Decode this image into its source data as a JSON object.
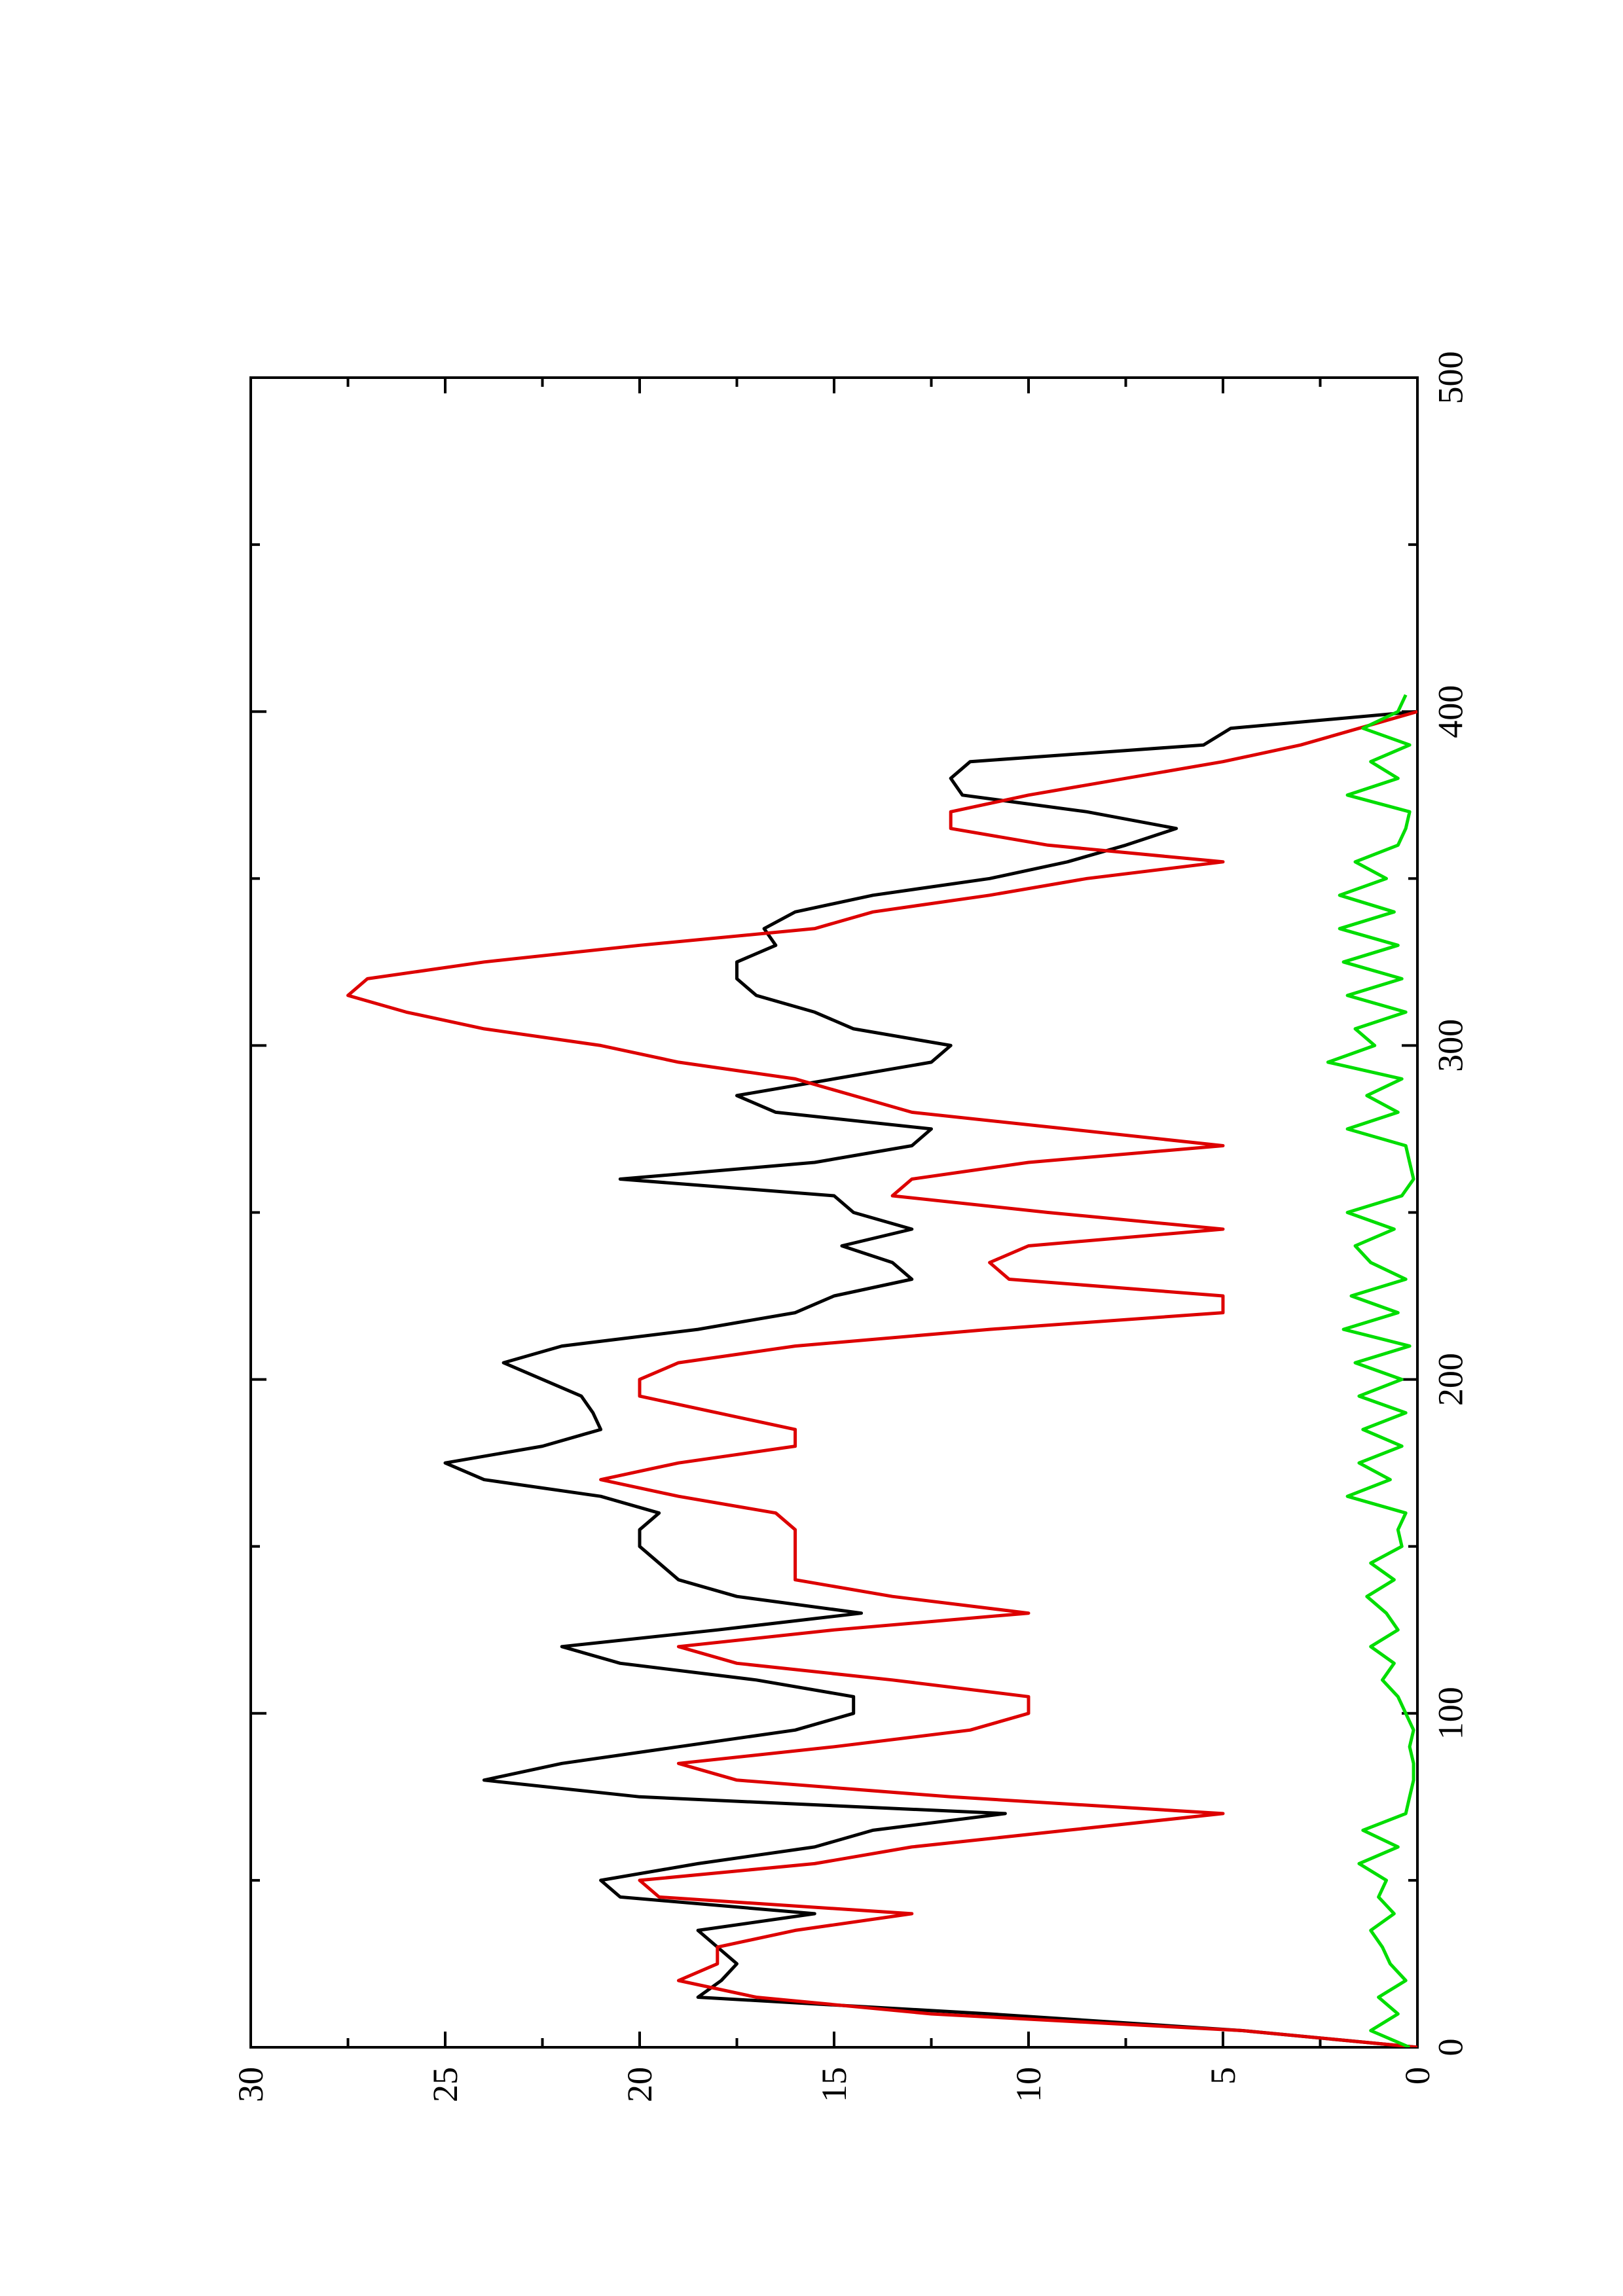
{
  "chart_data": {
    "type": "line",
    "title": "",
    "xlabel": "",
    "ylabel": "",
    "orientation": "rotated 90 degrees counter-clockwise (page landscape printed on portrait sheet)",
    "xlim": [
      0,
      500
    ],
    "ylim": [
      0,
      30
    ],
    "x_ticks": [
      "0",
      "100",
      "200",
      "300",
      "400",
      "500"
    ],
    "y_ticks": [
      "0",
      "5",
      "10",
      "15",
      "20",
      "25",
      "30"
    ],
    "grid": false,
    "legend": "none",
    "series": [
      {
        "color": "#000000",
        "x": [
          0,
          5,
          10,
          15,
          20,
          25,
          30,
          35,
          40,
          45,
          50,
          55,
          60,
          65,
          70,
          75,
          80,
          85,
          90,
          95,
          100,
          105,
          110,
          115,
          120,
          125,
          130,
          135,
          140,
          145,
          150,
          155,
          160,
          165,
          170,
          175,
          180,
          185,
          190,
          195,
          200,
          205,
          210,
          215,
          220,
          225,
          230,
          235,
          240,
          245,
          250,
          255,
          260,
          265,
          270,
          275,
          280,
          285,
          290,
          295,
          300,
          305,
          310,
          315,
          320,
          325,
          330,
          335,
          340,
          345,
          350,
          355,
          360,
          365,
          370,
          375,
          380,
          385,
          390,
          395,
          400
        ],
        "y": [
          0,
          4.5,
          11,
          18.5,
          17.9,
          17.5,
          18,
          18.5,
          15.5,
          20.5,
          21,
          18.5,
          15.5,
          14,
          10.6,
          20,
          24,
          22,
          19,
          16,
          14.5,
          14.5,
          17,
          20.5,
          22,
          18,
          14.3,
          17.5,
          19,
          19.5,
          20,
          20,
          19.5,
          21,
          24,
          25,
          22.5,
          21,
          21.2,
          21.5,
          22.5,
          23.5,
          22,
          18.5,
          16,
          15,
          13,
          13.5,
          14.8,
          13,
          14.5,
          15,
          20.5,
          15.5,
          13,
          12.5,
          16.5,
          17.5,
          15,
          12.5,
          12,
          14.5,
          15.5,
          17,
          17.5,
          17.5,
          16.5,
          16.8,
          16,
          14,
          11,
          9,
          7.5,
          6.2,
          8.5,
          11.7,
          12,
          11.5,
          5.5,
          4.8,
          0
        ]
      },
      {
        "color": "#dd0000",
        "x": [
          0,
          5,
          10,
          15,
          20,
          25,
          30,
          35,
          40,
          45,
          50,
          55,
          60,
          65,
          70,
          75,
          80,
          85,
          90,
          95,
          100,
          105,
          110,
          115,
          120,
          125,
          130,
          135,
          140,
          145,
          150,
          155,
          160,
          165,
          170,
          175,
          180,
          185,
          190,
          195,
          200,
          205,
          210,
          215,
          220,
          225,
          230,
          235,
          240,
          245,
          250,
          255,
          260,
          265,
          270,
          275,
          280,
          285,
          290,
          295,
          300,
          305,
          310,
          315,
          320,
          325,
          330,
          335,
          340,
          345,
          350,
          355,
          360,
          365,
          370,
          375,
          380,
          385,
          390,
          395,
          400
        ],
        "y": [
          0,
          4.5,
          12.5,
          17,
          19,
          18,
          18,
          16,
          13,
          19.5,
          20,
          15.5,
          13,
          9,
          5,
          12,
          17.5,
          19,
          15,
          11.5,
          10,
          10,
          13.5,
          17.5,
          19,
          15,
          10,
          13.5,
          16,
          16,
          16,
          16,
          16.5,
          19,
          21,
          19,
          16,
          16,
          18,
          20,
          20,
          19,
          16,
          11,
          5,
          5,
          10.5,
          11,
          10,
          5,
          9.5,
          13.5,
          13,
          10,
          5,
          9,
          13,
          14.5,
          16,
          19,
          21,
          24,
          26,
          27.5,
          27,
          24,
          20,
          15.5,
          14,
          11,
          8.5,
          5,
          9.5,
          12,
          12,
          10,
          7.5,
          5,
          3,
          1.5,
          0
        ]
      },
      {
        "color": "#00dd00",
        "x": [
          0,
          5,
          10,
          15,
          20,
          25,
          30,
          35,
          40,
          45,
          50,
          55,
          60,
          65,
          70,
          75,
          80,
          85,
          90,
          95,
          100,
          105,
          110,
          115,
          120,
          125,
          130,
          135,
          140,
          145,
          150,
          155,
          160,
          165,
          170,
          175,
          180,
          185,
          190,
          195,
          200,
          205,
          210,
          215,
          220,
          225,
          230,
          235,
          240,
          245,
          250,
          255,
          260,
          265,
          270,
          275,
          280,
          285,
          290,
          295,
          300,
          305,
          310,
          315,
          320,
          325,
          330,
          335,
          340,
          345,
          350,
          355,
          360,
          365,
          370,
          375,
          380,
          385,
          390,
          395,
          400,
          405
        ],
        "y": [
          0.2,
          1.2,
          0.5,
          1,
          0.3,
          0.7,
          0.9,
          1.2,
          0.6,
          1,
          0.8,
          1.5,
          0.5,
          1.4,
          0.3,
          0.2,
          0.1,
          0.1,
          0.2,
          0.1,
          0.3,
          0.5,
          0.9,
          0.6,
          1.2,
          0.5,
          0.8,
          1.3,
          0.6,
          1.2,
          0.4,
          0.5,
          0.3,
          1.8,
          0.7,
          1.5,
          0.4,
          1.4,
          0.3,
          1.5,
          0.4,
          1.6,
          0.2,
          1.9,
          0.5,
          1.7,
          0.3,
          1.2,
          1.6,
          0.6,
          1.8,
          0.4,
          0.1,
          0.2,
          0.3,
          1.8,
          0.5,
          1.3,
          0.4,
          2.3,
          1.1,
          1.6,
          0.3,
          1.8,
          0.4,
          1.9,
          0.5,
          2,
          0.6,
          2,
          0.8,
          1.6,
          0.5,
          0.3,
          0.2,
          1.8,
          0.5,
          1.2,
          0.2,
          1.4,
          0.5,
          0.3
        ]
      }
    ]
  }
}
